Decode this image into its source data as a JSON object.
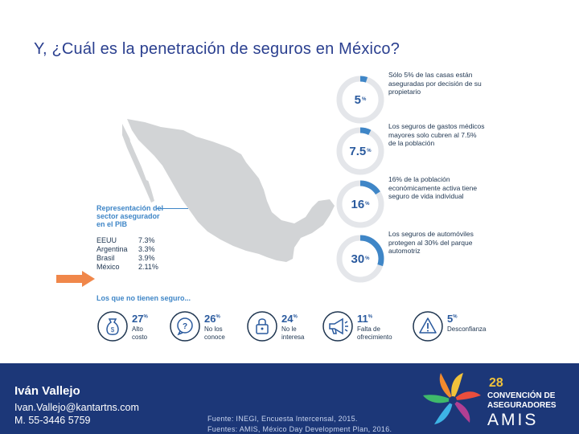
{
  "title": "Y, ¿Cuál es la penetración de seguros en México?",
  "pib": {
    "title": "Representación del sector asegurador en el PIB",
    "rows": [
      {
        "country": "EEUU",
        "value": "7.3%"
      },
      {
        "country": "Argentina",
        "value": "3.3%"
      },
      {
        "country": "Brasil",
        "value": "3.9%"
      },
      {
        "country": "México",
        "value": "2.11%"
      }
    ]
  },
  "stats": [
    {
      "value": "5",
      "unit": "%",
      "fraction": 0.05,
      "text": "Sólo 5% de las casas están aseguradas por decisión de su propietario"
    },
    {
      "value": "7.5",
      "unit": "%",
      "fraction": 0.075,
      "text": "Los seguros de gastos médicos mayores solo cubren al 7.5% de la población"
    },
    {
      "value": "16",
      "unit": "%",
      "fraction": 0.16,
      "text": "16% de la población económicamente activa tiene seguro de vida individual"
    },
    {
      "value": "30",
      "unit": "%",
      "fraction": 0.3,
      "text": "Los seguros de automóviles protegen al 30% del parque automotriz"
    }
  ],
  "no_insurance": {
    "heading": "Los que no tienen seguro...",
    "reasons": [
      {
        "value": "27",
        "unit": "%",
        "line1": "Alto",
        "line2": "costo",
        "icon": "money-bag-icon"
      },
      {
        "value": "26",
        "unit": "%",
        "line1": "No los",
        "line2": "conoce",
        "icon": "question-icon"
      },
      {
        "value": "24",
        "unit": "%",
        "line1": "No le",
        "line2": "interesa",
        "icon": "lock-icon"
      },
      {
        "value": "11",
        "unit": "%",
        "line1": "Falta de",
        "line2": "ofrecimiento",
        "icon": "megaphone-icon"
      },
      {
        "value": "5",
        "unit": "%",
        "line1": "Desconfianza",
        "line2": "",
        "icon": "warning-icon"
      }
    ]
  },
  "presenter": {
    "name": "Iván Vallejo",
    "email": "Ivan.Vallejo@kantartns.com",
    "phone": "M. 55-3446 5759"
  },
  "sources": {
    "line1": "Fuente: INEGI, Encuesta Intercensal, 2015.",
    "line2": "Fuentes: AMIS, México Day Development Plan, 2016."
  },
  "convention": {
    "number": "28",
    "line1": "CONVENCIÓN DE",
    "line2": "ASEGURADORES",
    "brand": "AMIS"
  },
  "colors": {
    "title": "#2a3f8f",
    "accent_blue": "#3f86c7",
    "ring_track": "#e4e6ea",
    "footer": "#1c3778",
    "arrow": "#f0874a",
    "map": "#d2d4d6"
  }
}
